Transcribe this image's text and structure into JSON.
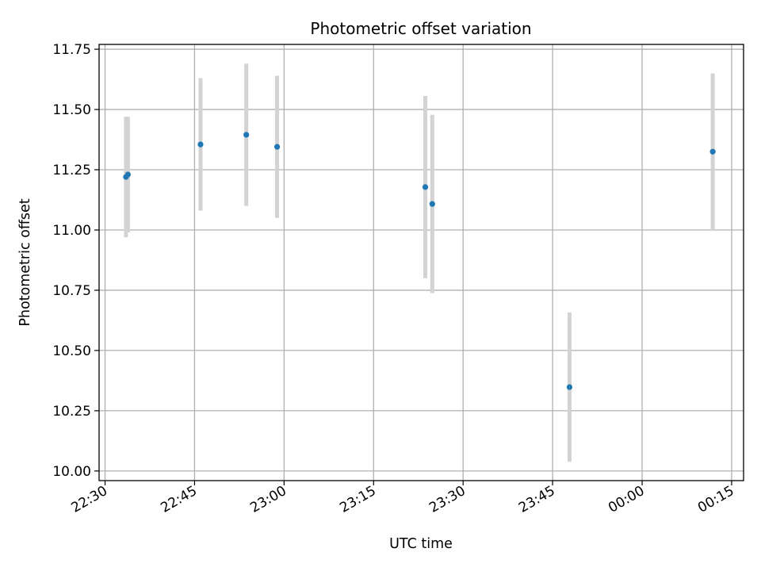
{
  "chart_data": {
    "type": "scatter",
    "title": "Photometric offset variation",
    "xlabel": "UTC time",
    "ylabel": "Photometric offset",
    "x_axis_kind": "time",
    "x_tick_labels": [
      "22:30",
      "22:45",
      "23:00",
      "23:15",
      "23:30",
      "23:45",
      "00:00",
      "00:15"
    ],
    "y_tick_labels": [
      "10.00",
      "10.25",
      "10.50",
      "10.75",
      "11.00",
      "11.25",
      "11.50",
      "11.75"
    ],
    "xlim": [
      "22:29:00",
      "00:17:00"
    ],
    "ylim": [
      9.96,
      11.77
    ],
    "grid": true,
    "error_bars": true,
    "colors": {
      "points": "#1f77b4",
      "error_bars": "#d3d3d3",
      "grid": "#b0b0b0"
    },
    "series": [
      {
        "points": [
          {
            "x": "22:33:30",
            "y": 11.22,
            "err": 0.25
          },
          {
            "x": "22:33:50",
            "y": 11.23,
            "err": 0.24
          },
          {
            "x": "22:46:00",
            "y": 11.355,
            "err": 0.275
          },
          {
            "x": "22:53:40",
            "y": 11.395,
            "err": 0.295
          },
          {
            "x": "22:58:50",
            "y": 11.345,
            "err": 0.295
          },
          {
            "x": "23:23:40",
            "y": 11.178,
            "err": 0.378
          },
          {
            "x": "23:24:50",
            "y": 11.108,
            "err": 0.37
          },
          {
            "x": "23:47:50",
            "y": 10.348,
            "err": 0.31
          },
          {
            "x": "00:11:50",
            "y": 11.325,
            "err": 0.325
          }
        ]
      }
    ]
  }
}
